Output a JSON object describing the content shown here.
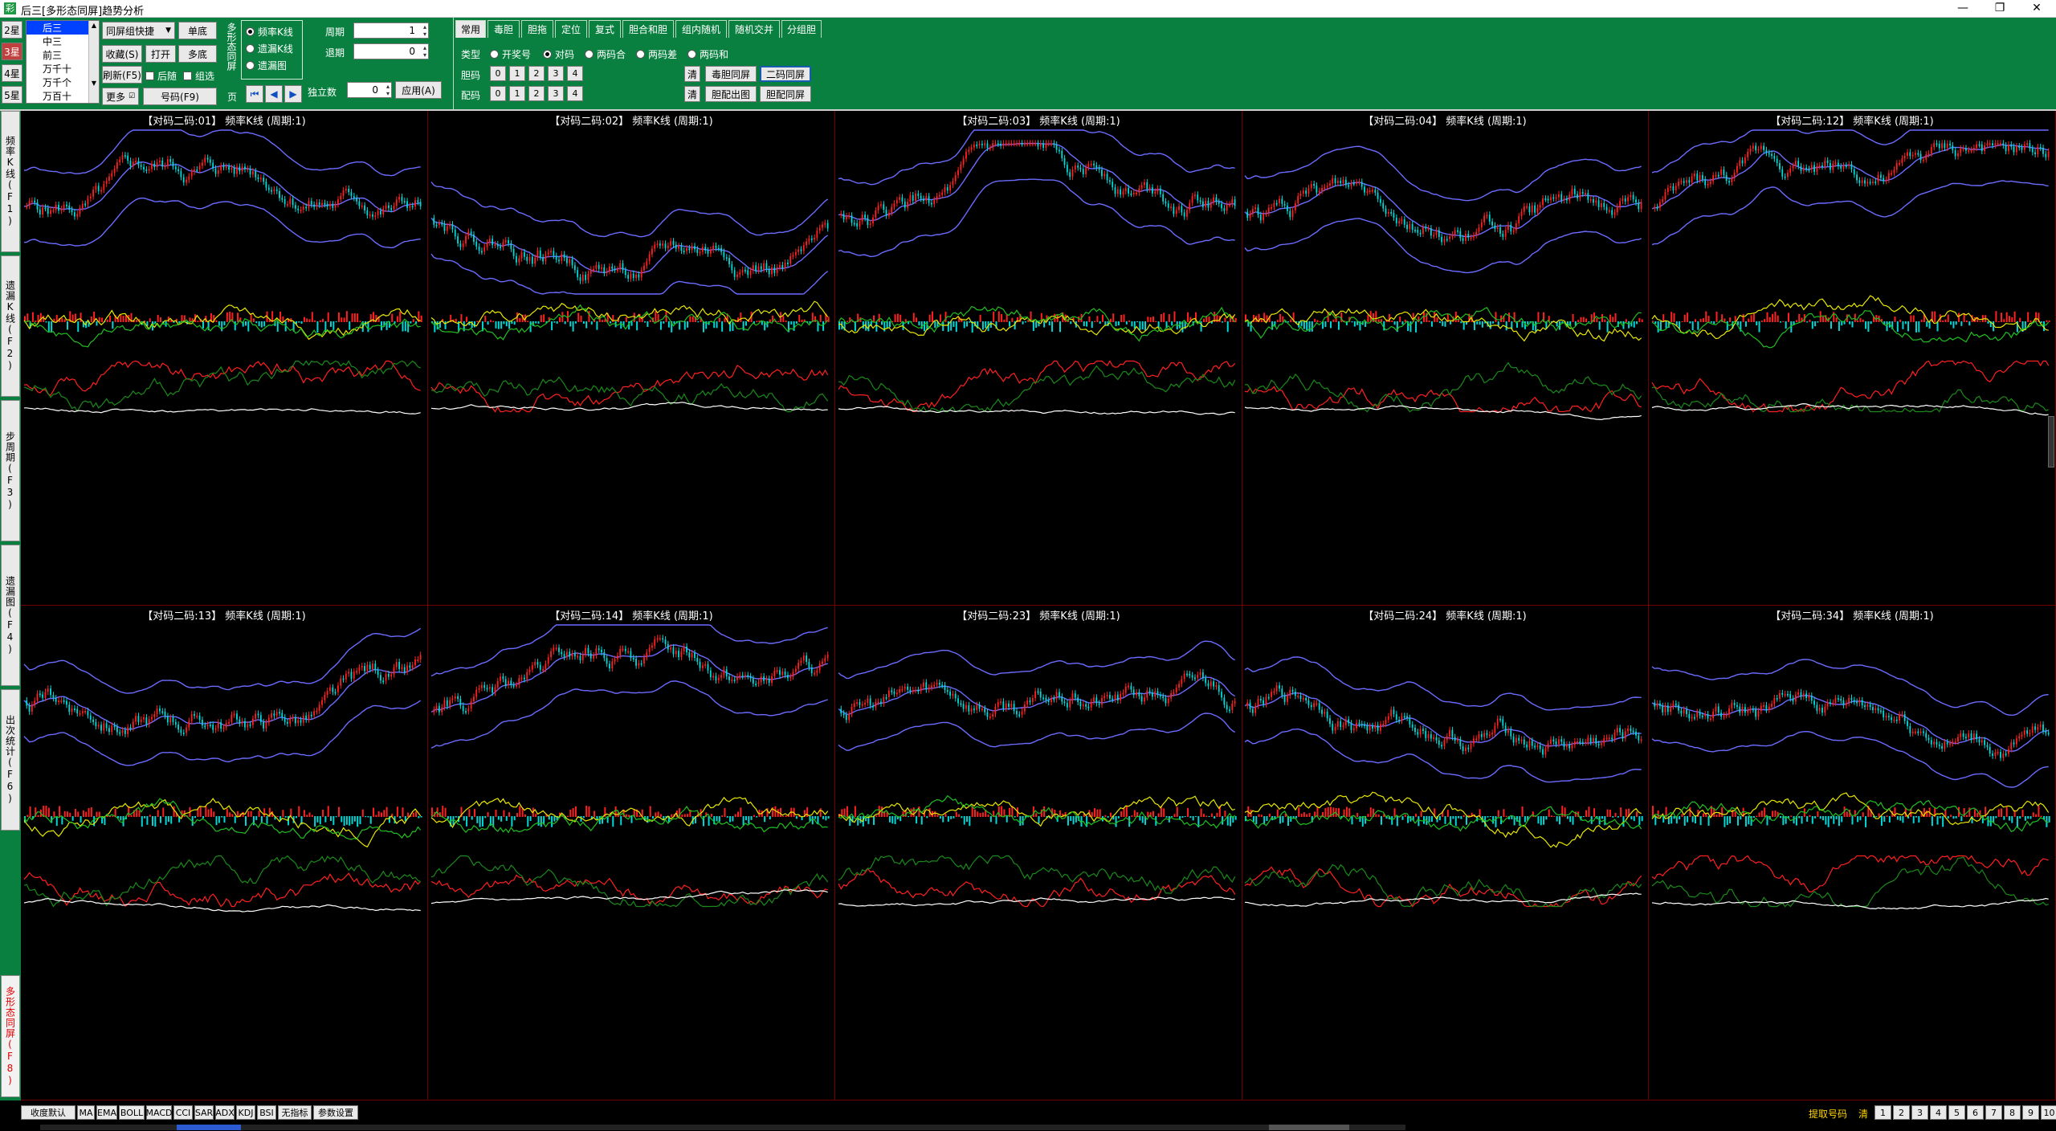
{
  "window": {
    "title": "后三[多形态同屏]趋势分析",
    "min": "—",
    "max": "❐",
    "close": "✕"
  },
  "toolbar": {
    "star_tabs": [
      "2星",
      "3星",
      "4星",
      "5星"
    ],
    "position_list": [
      "后三",
      "中三",
      "前三",
      "万千十",
      "万千个",
      "万百十"
    ],
    "layout_select": "同屏组快捷",
    "btn_single": "单底",
    "btn_fav": "收藏(S)",
    "btn_open": "打开",
    "btn_multi": "多底",
    "btn_refresh": "刷新(F5)",
    "chk_follow": "后随",
    "chk_group": "组选",
    "btn_more": "更多",
    "btn_number": "号码(F9)",
    "vertical_group": "多形态同屏",
    "page_label": "页",
    "radios": [
      "频率K线",
      "遗漏K线",
      "遗漏图"
    ],
    "period_label": "周期",
    "period_value": "1",
    "back_label": "退期",
    "back_value": "0",
    "indep_label": "独立数",
    "indep_value": "0",
    "apply": "应用(A)"
  },
  "tabs": [
    "常用",
    "毒胆",
    "胆拖",
    "定位",
    "复式",
    "胆合和胆",
    "组内随机",
    "随机交并",
    "分组胆"
  ],
  "type_panel": {
    "type_label": "类型",
    "type_radios": [
      "开奖号",
      "对码",
      "两码合",
      "两码差",
      "两码和"
    ],
    "dan_label": "胆码",
    "pei_label": "配码",
    "dan_nums": [
      "0",
      "1",
      "2",
      "3",
      "4"
    ],
    "pei_nums": [
      "0",
      "1",
      "2",
      "3",
      "4"
    ],
    "clear1": "清",
    "clear2": "清",
    "btn_dudan": "毒胆同屏",
    "btn_ermaa": "二码同屏",
    "btn_danpeichu": "胆配出图",
    "btn_danpeitong": "胆配同屏"
  },
  "left_tabs": [
    "频率K线(F1)",
    "遗漏K线(F2)",
    "步周期(F3)",
    "遗漏图(F4)",
    "出次统计(F6)",
    "多形态同屏(F8)"
  ],
  "panels": [
    {
      "title": "【对码二码:01】 频率K线 (周期:1)"
    },
    {
      "title": "【对码二码:02】 频率K线 (周期:1)"
    },
    {
      "title": "【对码二码:03】 频率K线 (周期:1)"
    },
    {
      "title": "【对码二码:04】 频率K线 (周期:1)"
    },
    {
      "title": "【对码二码:12】 频率K线 (周期:1)"
    },
    {
      "title": "【对码二码:13】 频率K线 (周期:1)"
    },
    {
      "title": "【对码二码:14】 频率K线 (周期:1)"
    },
    {
      "title": "【对码二码:23】 频率K线 (周期:1)"
    },
    {
      "title": "【对码二码:24】 频率K线 (周期:1)"
    },
    {
      "title": "【对码二码:34】 频率K线 (周期:1)"
    }
  ],
  "indicators": [
    "收度默认",
    "MA",
    "EMA",
    "BOLL",
    "MACD",
    "CCI",
    "SAR",
    "ADX",
    "KDJ",
    "BSI",
    "无指标",
    "参数设置"
  ],
  "bottom_right": {
    "label": "提取号码",
    "clear": "清",
    "pages": [
      "1",
      "2",
      "3",
      "4",
      "5",
      "6",
      "7",
      "8",
      "9",
      "10"
    ]
  },
  "colors": {
    "green": "#0a8040",
    "up": "#ff2020",
    "down": "#00e0e0",
    "band": "#7070ff"
  }
}
